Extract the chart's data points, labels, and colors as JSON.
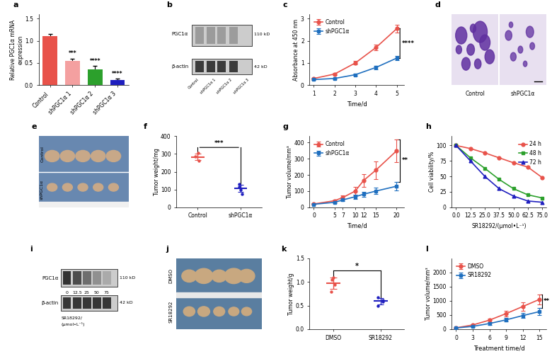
{
  "panel_a": {
    "categories": [
      "Control",
      "shPGC1α 1",
      "shPGC1α 2",
      "shPGC1α 3"
    ],
    "values": [
      1.1,
      0.55,
      0.35,
      0.12
    ],
    "errors": [
      0.05,
      0.05,
      0.08,
      0.02
    ],
    "colors": [
      "#e8524a",
      "#f4a0a0",
      "#2ca02c",
      "#1f1fbf"
    ],
    "ylabel": "Relative PGC1α mRNA\nexpression",
    "ylim": [
      0,
      1.6
    ],
    "yticks": [
      0.0,
      0.5,
      1.0,
      1.5
    ],
    "sig_labels": [
      "",
      "***",
      "****",
      "****"
    ],
    "label": "a"
  },
  "panel_c": {
    "time": [
      1,
      2,
      3,
      4,
      5
    ],
    "control_vals": [
      0.3,
      0.5,
      1.0,
      1.7,
      2.55
    ],
    "control_errs": [
      0.04,
      0.05,
      0.08,
      0.12,
      0.18
    ],
    "shpgc_vals": [
      0.25,
      0.3,
      0.47,
      0.8,
      1.22
    ],
    "shpgc_errs": [
      0.03,
      0.04,
      0.05,
      0.08,
      0.1
    ],
    "control_color": "#e8524a",
    "shpgc_color": "#1f6fbf",
    "xlabel": "Time/d",
    "ylabel": "Absorbance at 450 nm",
    "ylim": [
      0,
      3.2
    ],
    "yticks": [
      0,
      1,
      2,
      3
    ],
    "sig": "****",
    "label": "c"
  },
  "panel_f": {
    "categories": [
      "Control",
      "shPGC1α"
    ],
    "scatter_control": [
      260,
      285,
      305
    ],
    "scatter_shpgc": [
      75,
      100,
      115,
      130
    ],
    "color_control": "#e8524a",
    "color_shpgc": "#1f1fbf",
    "ylabel": "Tumor weight/mg",
    "ylim": [
      0,
      400
    ],
    "yticks": [
      0,
      100,
      200,
      300,
      400
    ],
    "sig": "***",
    "label": "f"
  },
  "panel_g": {
    "time": [
      0,
      5,
      7,
      10,
      12,
      15,
      20
    ],
    "control_vals": [
      20,
      40,
      60,
      100,
      165,
      230,
      350
    ],
    "control_errs": [
      3,
      8,
      15,
      25,
      40,
      55,
      70
    ],
    "shpgc_vals": [
      18,
      30,
      45,
      65,
      80,
      100,
      130
    ],
    "shpgc_errs": [
      3,
      6,
      8,
      12,
      15,
      20,
      28
    ],
    "control_color": "#e8524a",
    "shpgc_color": "#1f6fbf",
    "xlabel": "Time/d",
    "ylabel": "Tumor volume/mm³",
    "ylim": [
      0,
      440
    ],
    "yticks": [
      0,
      100,
      200,
      300,
      400
    ],
    "sig": "**",
    "label": "g",
    "legend": [
      "Control",
      "shPGC1α"
    ]
  },
  "panel_h": {
    "xvals": [
      0.0,
      12.5,
      25.0,
      37.5,
      50.0,
      62.5,
      75.0
    ],
    "h24_vals": [
      100,
      95,
      88,
      80,
      72,
      65,
      48
    ],
    "h48_vals": [
      100,
      80,
      63,
      45,
      30,
      20,
      15
    ],
    "h72_vals": [
      100,
      75,
      50,
      30,
      18,
      10,
      8
    ],
    "h24_color": "#e8524a",
    "h48_color": "#2ca02c",
    "h72_color": "#1f1fbf",
    "xlabel": "SR18292/(μmol•L⁻¹)",
    "ylabel": "Cell viability/%",
    "ylim": [
      0,
      115
    ],
    "yticks": [
      0,
      25,
      50,
      75,
      100
    ],
    "label": "h",
    "legend": [
      "24 h",
      "48 h",
      "72 h"
    ]
  },
  "panel_k": {
    "categories": [
      "DMSO",
      "SR18292"
    ],
    "scatter_dmso": [
      0.8,
      0.95,
      1.05,
      1.1
    ],
    "scatter_sr": [
      0.5,
      0.58,
      0.62,
      0.68
    ],
    "color_dmso": "#e8524a",
    "color_sr": "#1f1fbf",
    "ylabel": "Tumor weight/g",
    "ylim": [
      0,
      1.5
    ],
    "yticks": [
      0.0,
      0.5,
      1.0,
      1.5
    ],
    "sig": "*",
    "label": "k"
  },
  "panel_l": {
    "time": [
      0,
      3,
      6,
      9,
      12,
      15
    ],
    "dmso_vals": [
      50,
      150,
      320,
      550,
      800,
      1050
    ],
    "dmso_errs": [
      10,
      30,
      60,
      100,
      140,
      180
    ],
    "sr_vals": [
      45,
      100,
      200,
      330,
      480,
      620
    ],
    "sr_errs": [
      8,
      20,
      40,
      65,
      90,
      120
    ],
    "dmso_color": "#e8524a",
    "sr_color": "#1f6fbf",
    "xlabel": "Treatment time/d",
    "ylabel": "Tumor volume/mm³",
    "ylim": [
      0,
      2500
    ],
    "yticks": [
      0,
      500,
      1000,
      1500,
      2000
    ],
    "sig": "**",
    "label": "l",
    "legend": [
      "DMSO",
      "SR18292"
    ]
  }
}
